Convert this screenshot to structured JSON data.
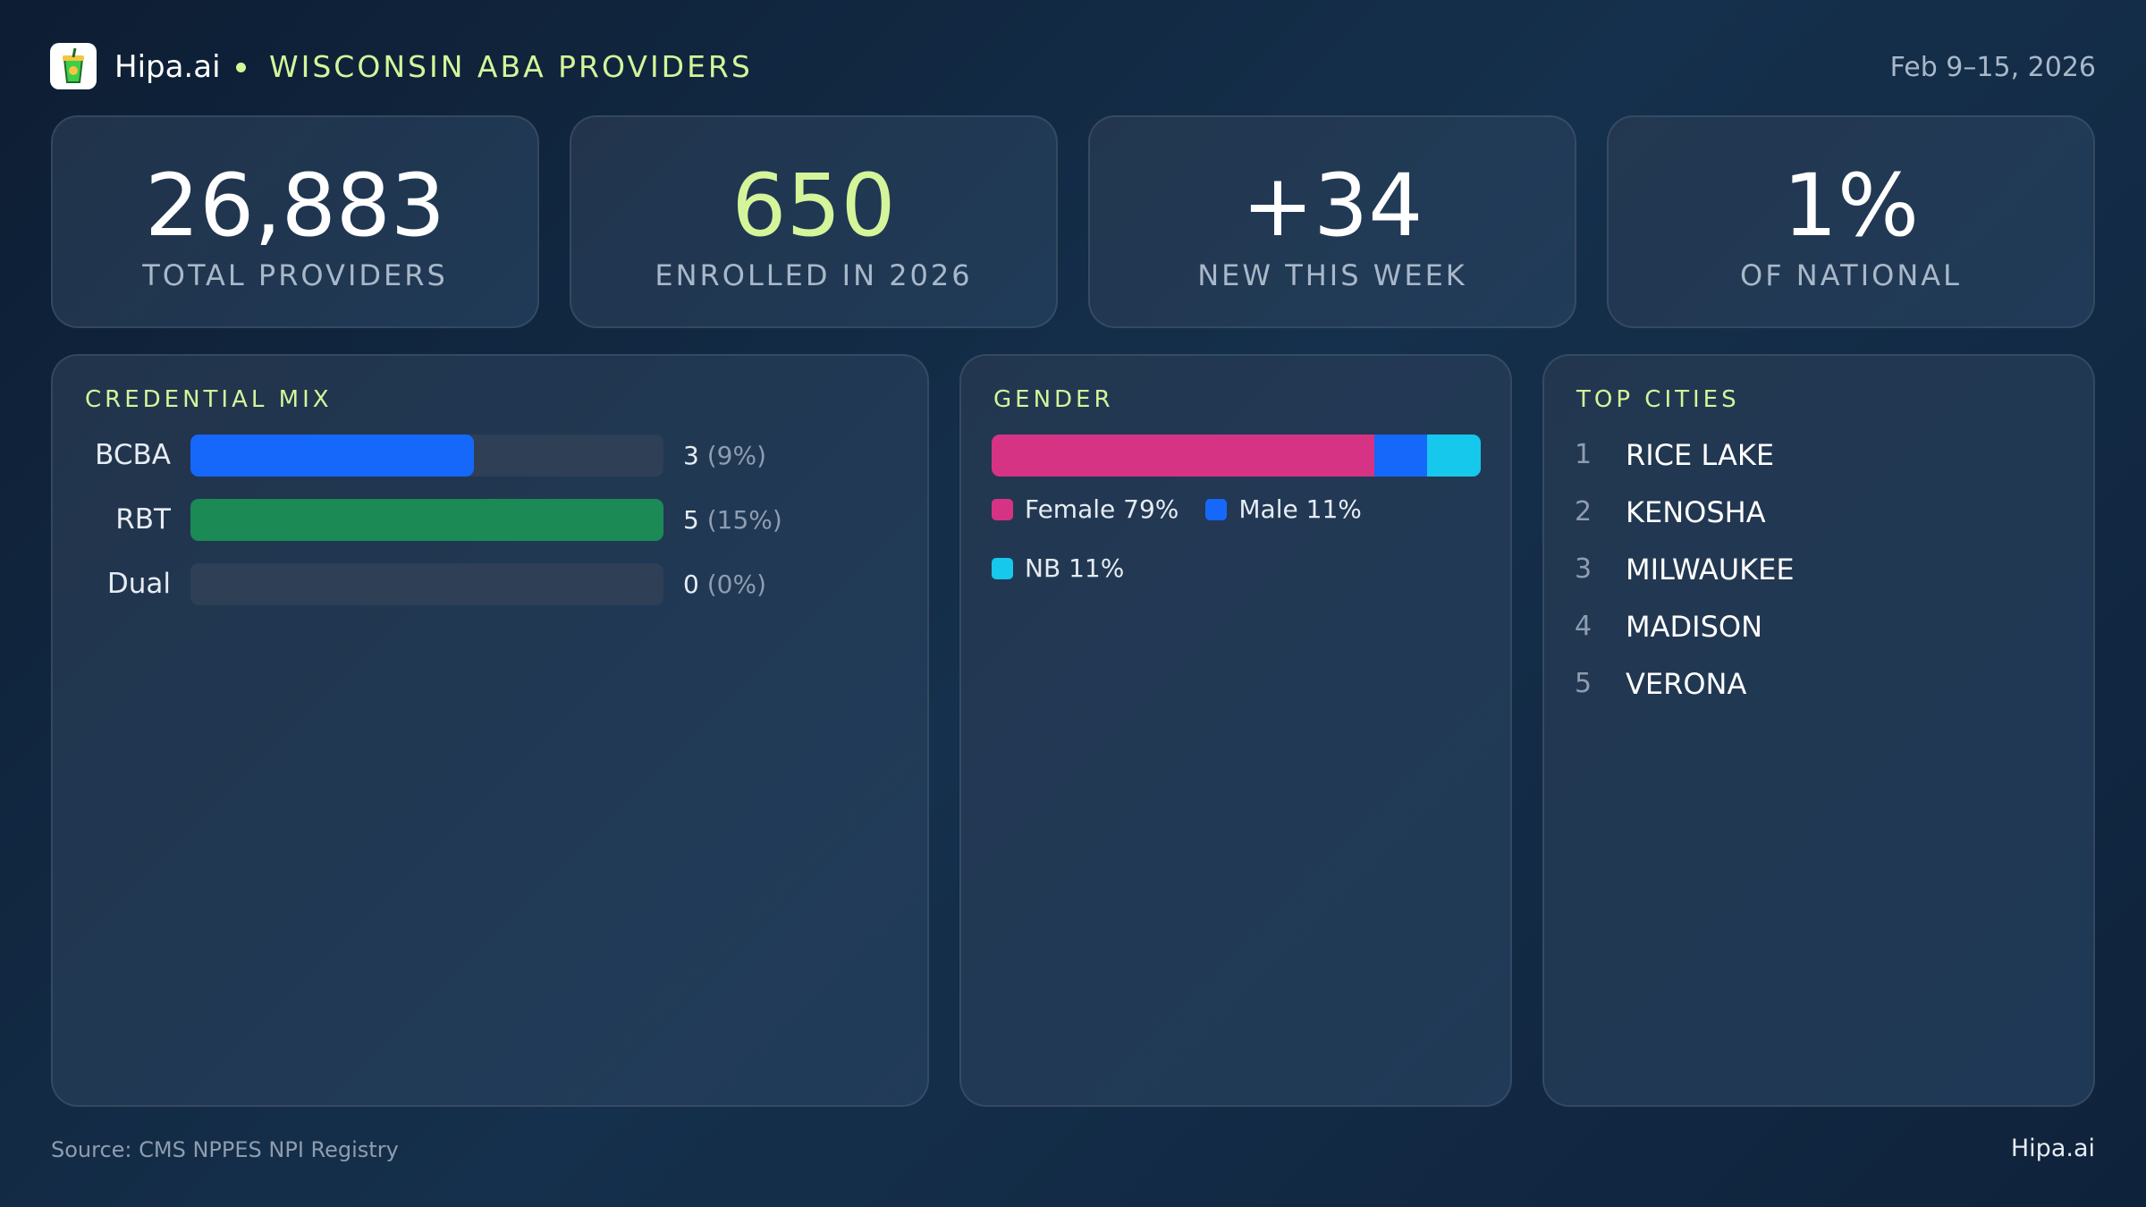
{
  "header": {
    "brand": "Hipa.ai",
    "title": "WISCONSIN ABA PROVIDERS",
    "date": "Feb 9–15, 2026"
  },
  "stats": [
    {
      "value": "26,883",
      "label": "TOTAL PROVIDERS",
      "accent": false
    },
    {
      "value": "650",
      "label": "ENROLLED IN 2026",
      "accent": true
    },
    {
      "value": "+34",
      "label": "NEW THIS WEEK",
      "accent": false
    },
    {
      "value": "1%",
      "label": "OF NATIONAL",
      "accent": false
    }
  ],
  "credential_mix": {
    "title": "CREDENTIAL MIX",
    "rows": [
      {
        "name": "BCBA",
        "count": 3,
        "percent_label": "(9%)",
        "color": "#1668fb"
      },
      {
        "name": "RBT",
        "count": 5,
        "percent_label": "(15%)",
        "color": "#1b8a55"
      },
      {
        "name": "Dual",
        "count": 0,
        "percent_label": "(0%)",
        "color": "#1668fb"
      }
    ]
  },
  "gender": {
    "title": "GENDER",
    "segments": [
      {
        "name": "Female",
        "value": 79,
        "value_label": "79%",
        "color": "#d63384"
      },
      {
        "name": "Male",
        "value": 11,
        "value_label": "11%",
        "color": "#1668fb"
      },
      {
        "name": "NB",
        "value": 11,
        "value_label": "11%",
        "color": "#16c8ec"
      }
    ]
  },
  "top_cities": {
    "title": "TOP CITIES",
    "cities": [
      {
        "rank": 1,
        "name": "RICE LAKE"
      },
      {
        "rank": 2,
        "name": "KENOSHA"
      },
      {
        "rank": 3,
        "name": "MILWAUKEE"
      },
      {
        "rank": 4,
        "name": "MADISON"
      },
      {
        "rank": 5,
        "name": "VERONA"
      }
    ]
  },
  "footer": {
    "source": "Source: CMS NPPES NPI Registry",
    "brand": "Hipa.ai"
  }
}
